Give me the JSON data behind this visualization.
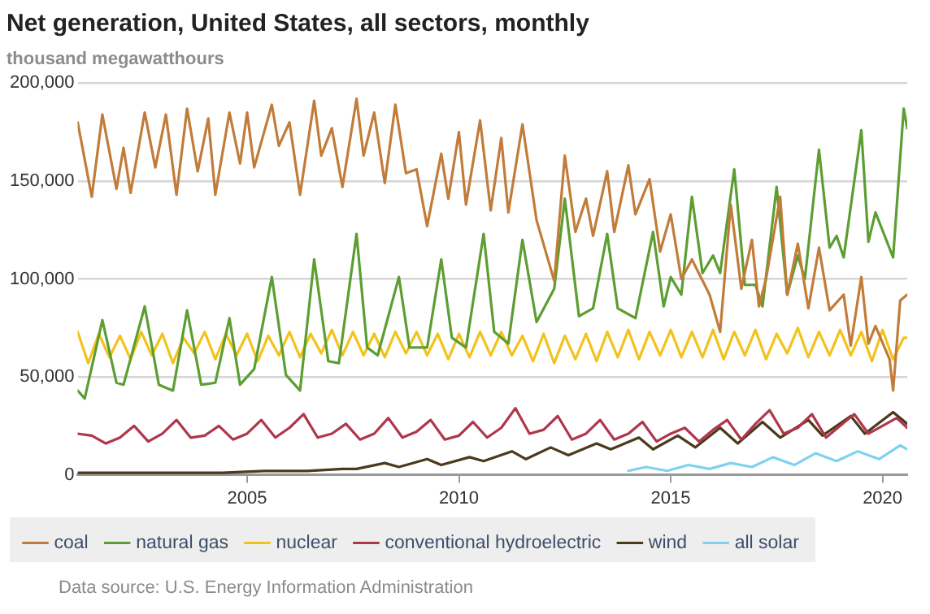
{
  "chart_data": {
    "type": "line",
    "title": "Net generation, United States, all sectors, monthly",
    "ylabel": "thousand megawatthours",
    "annotations": [
      "Data source: U.S. Energy Information Administration"
    ],
    "xlim": [
      "2001-01",
      "2020-08"
    ],
    "xticks": [
      "2005",
      "2010",
      "2015",
      "2020"
    ],
    "ylim": [
      0,
      200000
    ],
    "yticks": [
      0,
      {
        "value": 50000,
        "label": "50,000"
      },
      {
        "value": 100000,
        "label": "100,000"
      },
      {
        "value": 150000,
        "label": "150,000"
      },
      {
        "value": 200000,
        "label": "200,000"
      }
    ],
    "grid": "y",
    "legend": "bottom",
    "line_style": "solid",
    "series": [
      {
        "name": "coal",
        "color": "#c27c3a",
        "x": [
          "2001-01",
          "2001-05",
          "2001-08",
          "2001-12",
          "2002-02",
          "2002-04",
          "2002-08",
          "2002-11",
          "2003-02",
          "2003-05",
          "2003-08",
          "2003-11",
          "2004-02",
          "2004-04",
          "2004-08",
          "2004-11",
          "2005-01",
          "2005-03",
          "2005-08",
          "2005-10",
          "2006-01",
          "2006-04",
          "2006-08",
          "2006-10",
          "2007-01",
          "2007-04",
          "2007-08",
          "2007-10",
          "2008-01",
          "2008-04",
          "2008-07",
          "2008-10",
          "2009-01",
          "2009-04",
          "2009-08",
          "2009-10",
          "2010-01",
          "2010-03",
          "2010-07",
          "2010-10",
          "2011-01",
          "2011-03",
          "2011-07",
          "2011-11",
          "2012-04",
          "2012-07",
          "2012-10",
          "2013-01",
          "2013-03",
          "2013-07",
          "2013-09",
          "2014-01",
          "2014-03",
          "2014-07",
          "2014-10",
          "2015-01",
          "2015-04",
          "2015-07",
          "2015-12",
          "2016-03",
          "2016-06",
          "2016-09",
          "2016-12",
          "2017-02",
          "2017-04",
          "2017-08",
          "2017-10",
          "2018-01",
          "2018-04",
          "2018-07",
          "2018-10",
          "2019-02",
          "2019-04",
          "2019-07",
          "2019-09",
          "2019-11",
          "2020-03",
          "2020-04",
          "2020-06",
          "2020-08"
        ],
        "values": [
          180000,
          142000,
          184000,
          146000,
          167000,
          144000,
          185000,
          157000,
          184000,
          143000,
          187000,
          155000,
          182000,
          143000,
          185000,
          159000,
          185000,
          157000,
          189000,
          168000,
          180000,
          143000,
          191000,
          163000,
          177000,
          147000,
          192000,
          163000,
          185000,
          149000,
          189000,
          154000,
          156000,
          127000,
          164000,
          141000,
          175000,
          138000,
          181000,
          135000,
          172000,
          134000,
          179000,
          130000,
          99000,
          163000,
          124000,
          141000,
          122000,
          155000,
          124000,
          158000,
          133000,
          151000,
          114000,
          133000,
          100000,
          110000,
          92000,
          73000,
          138000,
          95000,
          120000,
          86000,
          100000,
          142000,
          92000,
          118000,
          85000,
          116000,
          84000,
          92000,
          66000,
          101000,
          67000,
          76000,
          59000,
          43000,
          89000,
          92000
        ]
      },
      {
        "name": "natural gas",
        "color": "#5c9e32",
        "x": [
          "2001-01",
          "2001-03",
          "2001-08",
          "2001-12",
          "2002-02",
          "2002-08",
          "2002-12",
          "2003-04",
          "2003-08",
          "2003-12",
          "2004-04",
          "2004-08",
          "2004-11",
          "2005-03",
          "2005-08",
          "2005-12",
          "2006-04",
          "2006-08",
          "2006-12",
          "2007-03",
          "2007-08",
          "2007-11",
          "2008-02",
          "2008-08",
          "2008-11",
          "2009-04",
          "2009-08",
          "2009-11",
          "2010-03",
          "2010-08",
          "2010-11",
          "2011-03",
          "2011-07",
          "2011-11",
          "2012-04",
          "2012-07",
          "2012-11",
          "2013-03",
          "2013-07",
          "2013-10",
          "2014-03",
          "2014-08",
          "2014-11",
          "2015-01",
          "2015-04",
          "2015-07",
          "2015-10",
          "2016-01",
          "2016-03",
          "2016-07",
          "2016-10",
          "2017-01",
          "2017-03",
          "2017-07",
          "2017-10",
          "2018-01",
          "2018-03",
          "2018-07",
          "2018-10",
          "2018-12",
          "2019-02",
          "2019-07",
          "2019-09",
          "2019-11",
          "2020-04",
          "2020-07",
          "2020-08"
        ],
        "values": [
          43000,
          39000,
          79000,
          47000,
          46000,
          86000,
          46000,
          43000,
          84000,
          46000,
          47000,
          80000,
          46000,
          54000,
          101000,
          51000,
          43000,
          110000,
          58000,
          57000,
          123000,
          65000,
          61000,
          101000,
          65000,
          65000,
          110000,
          70000,
          65000,
          123000,
          73000,
          67000,
          120000,
          78000,
          95000,
          141000,
          81000,
          85000,
          123000,
          85000,
          80000,
          124000,
          86000,
          101000,
          92000,
          142000,
          103000,
          112000,
          103000,
          156000,
          97000,
          97000,
          86000,
          147000,
          92000,
          112000,
          100000,
          166000,
          116000,
          122000,
          111000,
          176000,
          119000,
          134000,
          111000,
          187000,
          177000
        ]
      },
      {
        "name": "nuclear",
        "color": "#f2c31c",
        "x": [
          "2001-01",
          "2001-04",
          "2001-07",
          "2001-10",
          "2002-01",
          "2002-04",
          "2002-07",
          "2002-10",
          "2003-01",
          "2003-04",
          "2003-07",
          "2003-10",
          "2004-01",
          "2004-04",
          "2004-07",
          "2004-10",
          "2005-01",
          "2005-04",
          "2005-07",
          "2005-10",
          "2006-01",
          "2006-04",
          "2006-07",
          "2006-10",
          "2007-01",
          "2007-04",
          "2007-07",
          "2007-10",
          "2008-01",
          "2008-04",
          "2008-07",
          "2008-10",
          "2009-01",
          "2009-04",
          "2009-07",
          "2009-10",
          "2010-01",
          "2010-04",
          "2010-07",
          "2010-10",
          "2011-01",
          "2011-04",
          "2011-07",
          "2011-10",
          "2012-01",
          "2012-04",
          "2012-07",
          "2012-10",
          "2013-01",
          "2013-04",
          "2013-07",
          "2013-10",
          "2014-01",
          "2014-04",
          "2014-07",
          "2014-10",
          "2015-01",
          "2015-04",
          "2015-07",
          "2015-10",
          "2016-01",
          "2016-04",
          "2016-07",
          "2016-10",
          "2017-01",
          "2017-04",
          "2017-07",
          "2017-10",
          "2018-01",
          "2018-04",
          "2018-07",
          "2018-10",
          "2019-01",
          "2019-04",
          "2019-07",
          "2019-10",
          "2020-01",
          "2020-04",
          "2020-07",
          "2020-08"
        ],
        "values": [
          73000,
          57000,
          72000,
          60000,
          71000,
          59000,
          73000,
          61000,
          72000,
          57000,
          70000,
          62000,
          73000,
          59000,
          72000,
          61000,
          72000,
          58000,
          71000,
          61000,
          73000,
          60000,
          72000,
          62000,
          74000,
          61000,
          73000,
          61000,
          72000,
          60000,
          73000,
          62000,
          73000,
          61000,
          72000,
          59000,
          72000,
          60000,
          73000,
          61000,
          73000,
          61000,
          71000,
          58000,
          72000,
          57000,
          71000,
          59000,
          72000,
          58000,
          73000,
          60000,
          74000,
          59000,
          73000,
          61000,
          74000,
          60000,
          73000,
          60000,
          74000,
          59000,
          73000,
          61000,
          74000,
          59000,
          72000,
          62000,
          75000,
          60000,
          73000,
          61000,
          74000,
          61000,
          73000,
          58000,
          74000,
          59000,
          70000,
          70000
        ]
      },
      {
        "name": "conventional hydroelectric",
        "color": "#b0364c",
        "x": [
          "2001-01",
          "2001-05",
          "2001-09",
          "2002-01",
          "2002-05",
          "2002-09",
          "2003-01",
          "2003-05",
          "2003-09",
          "2004-01",
          "2004-05",
          "2004-09",
          "2005-01",
          "2005-05",
          "2005-09",
          "2006-01",
          "2006-05",
          "2006-09",
          "2007-01",
          "2007-05",
          "2007-09",
          "2008-01",
          "2008-05",
          "2008-09",
          "2009-01",
          "2009-05",
          "2009-09",
          "2010-01",
          "2010-05",
          "2010-09",
          "2011-01",
          "2011-05",
          "2011-09",
          "2012-01",
          "2012-05",
          "2012-09",
          "2013-01",
          "2013-05",
          "2013-09",
          "2014-01",
          "2014-05",
          "2014-09",
          "2015-01",
          "2015-05",
          "2015-09",
          "2016-01",
          "2016-05",
          "2016-09",
          "2017-01",
          "2017-05",
          "2017-09",
          "2018-01",
          "2018-05",
          "2018-09",
          "2019-01",
          "2019-05",
          "2019-09",
          "2020-01",
          "2020-05",
          "2020-08"
        ],
        "values": [
          21000,
          20000,
          16000,
          19000,
          25000,
          17000,
          21000,
          28000,
          19000,
          20000,
          25000,
          18000,
          21000,
          28000,
          19000,
          24000,
          31000,
          19000,
          21000,
          26000,
          18000,
          21000,
          29000,
          19000,
          22000,
          28000,
          18000,
          20000,
          27000,
          19000,
          24000,
          34000,
          21000,
          23000,
          30000,
          18000,
          21000,
          28000,
          18000,
          21000,
          27000,
          17000,
          21000,
          24000,
          17000,
          23000,
          28000,
          18000,
          26000,
          33000,
          21000,
          24000,
          31000,
          19000,
          25000,
          31000,
          21000,
          25000,
          29000,
          24000
        ]
      },
      {
        "name": "wind",
        "color": "#4b3a1c",
        "x": [
          "2001-01",
          "2002-06",
          "2003-06",
          "2004-06",
          "2005-06",
          "2006-06",
          "2007-04",
          "2007-08",
          "2008-04",
          "2008-08",
          "2009-04",
          "2009-08",
          "2010-04",
          "2010-08",
          "2011-04",
          "2011-08",
          "2012-03",
          "2012-08",
          "2013-04",
          "2013-08",
          "2014-04",
          "2014-08",
          "2015-03",
          "2015-08",
          "2016-03",
          "2016-08",
          "2017-03",
          "2017-08",
          "2018-04",
          "2018-08",
          "2019-04",
          "2019-08",
          "2020-04",
          "2020-08"
        ],
        "values": [
          1000,
          1000,
          1000,
          1000,
          2000,
          2000,
          3000,
          3000,
          6000,
          4000,
          8000,
          5000,
          9000,
          7000,
          12000,
          8000,
          14000,
          10000,
          16000,
          13000,
          19000,
          13000,
          20000,
          14000,
          24000,
          16000,
          27000,
          19000,
          28000,
          20000,
          30000,
          21000,
          32000,
          26000
        ]
      },
      {
        "name": "all solar",
        "color": "#7fd2ef",
        "x": [
          "2014-01",
          "2014-06",
          "2014-12",
          "2015-06",
          "2015-12",
          "2016-06",
          "2016-12",
          "2017-06",
          "2017-12",
          "2018-06",
          "2018-12",
          "2019-06",
          "2019-12",
          "2020-06",
          "2020-08"
        ],
        "values": [
          2000,
          4000,
          2000,
          5000,
          3000,
          6000,
          4000,
          9000,
          5000,
          11000,
          7000,
          12000,
          8000,
          15000,
          13000
        ]
      }
    ]
  }
}
